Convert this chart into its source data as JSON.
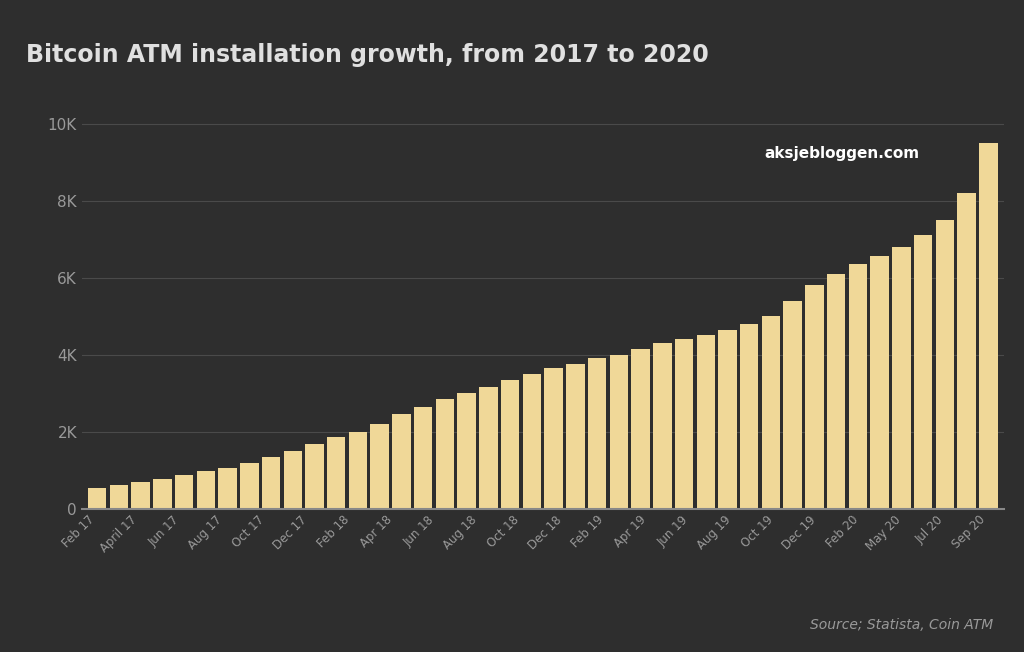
{
  "title": "Bitcoin ATM installation growth, from 2017 to 2020",
  "source_text": "Source; Statista, Coin ATM",
  "background_color": "#2e2e2e",
  "title_bg_color": "#484848",
  "bar_color": "#f0d898",
  "title_color": "#e0e0e0",
  "axis_color": "#999999",
  "grid_color": "#4a4a4a",
  "xtick_labels": [
    "Feb 17",
    "April 17",
    "Jun 17",
    "Aug 17",
    "Oct 17",
    "Dec 17",
    "Feb 18",
    "Apr 18",
    "Jun 18",
    "Aug 18",
    "Oct 18",
    "Dec 18",
    "Feb 19",
    "Apr 19",
    "Jun 19",
    "Aug 19",
    "Oct 19",
    "Dec 19",
    "Feb 20",
    "May 20",
    "Jul 20",
    "Sep 20"
  ],
  "monthly_values": [
    530,
    620,
    700,
    760,
    870,
    980,
    1050,
    1180,
    1350,
    1500,
    1680,
    1850,
    2000,
    2200,
    2450,
    2650,
    2850,
    3000,
    3150,
    3350,
    3500,
    3650,
    3750,
    3900,
    4000,
    4150,
    4300,
    4400,
    4500,
    4650,
    4800,
    5000,
    5400,
    5800,
    6100,
    6350,
    6550,
    6800,
    7100,
    7500,
    8200,
    9500
  ],
  "ylim": [
    0,
    10500
  ],
  "yticks": [
    0,
    2000,
    4000,
    6000,
    8000,
    10000
  ],
  "ytick_labels": [
    "0",
    "2K",
    "4K",
    "6K",
    "8K",
    "10K"
  ]
}
